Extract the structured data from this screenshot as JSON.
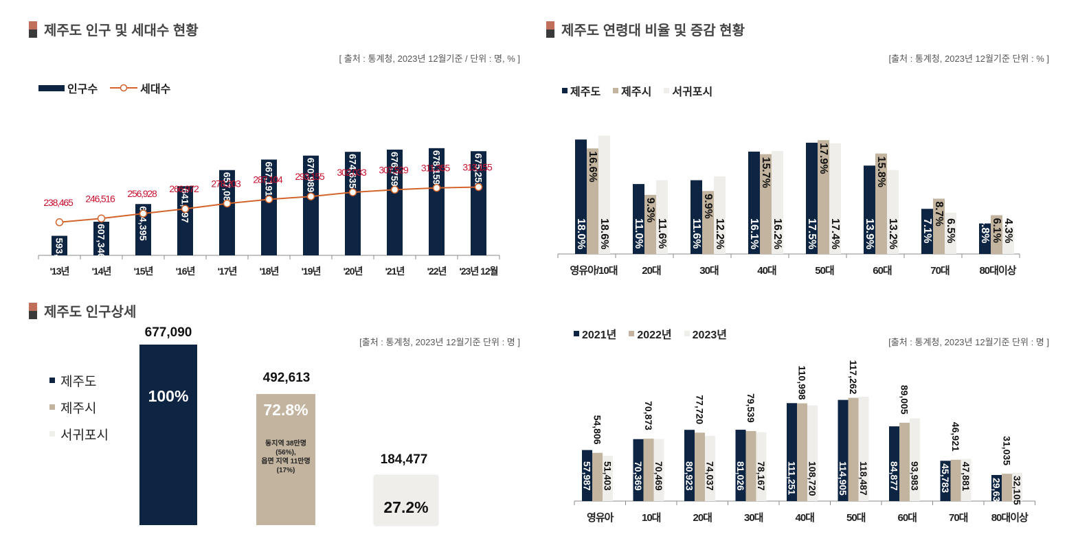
{
  "colors": {
    "navy": "#0d2443",
    "tan": "#c2b49e",
    "light": "#f0eeea",
    "orange": "#d2632a",
    "red": "#c8102e"
  },
  "panel1": {
    "title": "제주도 인구 및 세대수 현황",
    "source": "[ 출처 : 통계청, 2023년 12월기준 / 단위 : 명, % ]",
    "chart_data": {
      "type": "bar",
      "categories": [
        "'13년",
        "'14년",
        "'15년",
        "'16년",
        "'17년",
        "'18년",
        "'19년",
        "'20년",
        "'21년",
        "'22년",
        "'23년 12월"
      ],
      "series": [
        {
          "name": "인구수",
          "type": "bar",
          "values": [
            593806,
            607346,
            624395,
            641597,
            657083,
            667191,
            670989,
            674635,
            676759,
            678159,
            675252
          ],
          "labels": [
            "593,806",
            "607,346",
            "624,395",
            "641,597",
            "657,083",
            "667,191",
            "670,989",
            "674,635",
            "676,759",
            "678,159",
            "675,252"
          ]
        },
        {
          "name": "세대수",
          "type": "line",
          "values": [
            238465,
            246516,
            256928,
            266972,
            278203,
            287104,
            293155,
            302033,
            307529,
            311355,
            313155
          ],
          "labels": [
            "238,465",
            "246,516",
            "256,928",
            "266,972",
            "278,203",
            "287,104",
            "293,155",
            "302,033",
            "307,529",
            "311,355",
            "313,155"
          ]
        }
      ]
    }
  },
  "panel2": {
    "title": "제주도 연령대 비율 및 증감 현황",
    "source": "[출처 : 통계청, 2023년 12월기준 단위 : % ]",
    "chart_data": {
      "type": "bar",
      "categories": [
        "영유아/10대",
        "20대",
        "30대",
        "40대",
        "50대",
        "60대",
        "70대",
        "80대이상"
      ],
      "series": [
        {
          "name": "제주도",
          "values": [
            18.0,
            11.0,
            11.6,
            16.1,
            17.5,
            13.9,
            7.1,
            4.8
          ],
          "labels": [
            "18.0%",
            "11.0%",
            "11.6%",
            "16.1%",
            "17.5%",
            "13.9%",
            "7.1%",
            "4.8%"
          ]
        },
        {
          "name": "제주시",
          "values": [
            16.6,
            9.3,
            9.9,
            15.7,
            17.9,
            15.8,
            8.7,
            6.1
          ],
          "labels": [
            "16.6%",
            "9.3%",
            "9.9%",
            "15.7%",
            "17.9%",
            "15.8%",
            "8.7%",
            "6.1%"
          ]
        },
        {
          "name": "서귀포시",
          "values": [
            18.6,
            11.6,
            12.2,
            16.2,
            17.4,
            13.2,
            6.5,
            4.3
          ],
          "labels": [
            "18.6%",
            "11.6%",
            "12.2%",
            "16.2%",
            "17.4%",
            "13.2%",
            "6.5%",
            "4.3%"
          ]
        }
      ]
    }
  },
  "panel3": {
    "title": "제주도 인구상세",
    "source": "[출처 : 통계청, 2023년 12월기준 단위 : 명 ]",
    "chart_data": {
      "type": "bar",
      "categories": [
        "제주도",
        "제주시",
        "서귀포시"
      ],
      "values": [
        677090,
        492613,
        184477
      ],
      "value_labels": [
        "677,090",
        "492,613",
        "184,477"
      ],
      "share_labels": [
        "100%",
        "72.8%",
        "27.2%"
      ]
    },
    "note": [
      "동지역 38만명",
      "(56%),",
      "읍면 지역 11만명",
      "(17%)"
    ]
  },
  "panel4": {
    "source": "[출처 : 통계청, 2023년 12월기준 단위 : 명 ]",
    "chart_data": {
      "type": "bar",
      "categories": [
        "영유아",
        "10대",
        "20대",
        "30대",
        "40대",
        "50대",
        "60대",
        "70대",
        "80대이상"
      ],
      "series": [
        {
          "name": "2021년",
          "values": [
            57987,
            70369,
            80923,
            81026,
            111251,
            114905,
            84877,
            45783,
            29638
          ],
          "labels": [
            "57,987",
            "70,369",
            "80,923",
            "81,026",
            "111,251",
            "114,905",
            "84,877",
            "45,783",
            "29,638"
          ]
        },
        {
          "name": "2022년",
          "values": [
            54806,
            70873,
            77720,
            79539,
            110998,
            117262,
            89005,
            46921,
            31035
          ],
          "labels": [
            "54,806",
            "70,873",
            "77,720",
            "79,539",
            "110,998",
            "117,262",
            "89,005",
            "46,921",
            "31,035"
          ]
        },
        {
          "name": "2023년",
          "values": [
            51403,
            70469,
            74037,
            78167,
            108720,
            118487,
            93983,
            47881,
            32105
          ],
          "labels": [
            "51,403",
            "70,469",
            "74,037",
            "78,167",
            "108,720",
            "118,487",
            "93,983",
            "47,881",
            "32,105"
          ]
        }
      ]
    }
  }
}
